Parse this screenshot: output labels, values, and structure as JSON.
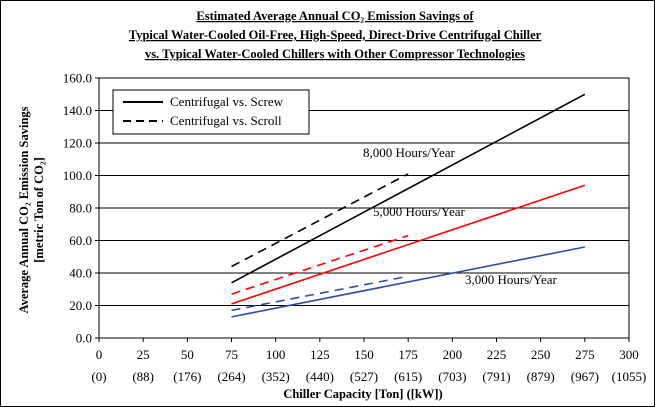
{
  "chart_data": {
    "type": "line",
    "title_lines": [
      "Estimated Average Annual CO₂ Emission Savings of",
      "Typical Water-Cooled Oil-Free, High-Speed, Direct-Drive Centrifugal Chiller",
      "vs. Typical Water-Cooled Chillers with Other Compressor Technologies"
    ],
    "xlabel": "Chiller Capacity [Ton] ([kW])",
    "ylabel_line1": "Average Annual CO₂ Emission Savings",
    "ylabel_line2": "[metric Ton of CO₂]",
    "xlim": [
      0,
      300
    ],
    "ylim": [
      0,
      160
    ],
    "x_ticks": [
      "0",
      "25",
      "50",
      "75",
      "100",
      "125",
      "150",
      "175",
      "200",
      "225",
      "250",
      "275",
      "300"
    ],
    "x_ticks_kw": [
      "(0)",
      "(88)",
      "(176)",
      "(264)",
      "(352)",
      "(440)",
      "(527)",
      "(615)",
      "(703)",
      "(791)",
      "(879)",
      "(967)",
      "(1055)"
    ],
    "y_ticks": [
      "0.0",
      "20.0",
      "40.0",
      "60.0",
      "80.0",
      "100.0",
      "120.0",
      "140.0",
      "160.0"
    ],
    "grid": "horizontal",
    "legend_position": "top-left",
    "legend": [
      {
        "label": "Centrifugal vs. Screw",
        "style": "solid"
      },
      {
        "label": "Centrifugal vs. Scroll",
        "style": "dashed"
      }
    ],
    "annotations": [
      "8,000 Hours/Year",
      "5,000 Hours/Year",
      "3,000 Hours/Year"
    ],
    "series": [
      {
        "group": "8,000 Hours/Year",
        "compare": "Screw",
        "color": "#000000",
        "dash": false,
        "x": [
          75,
          275
        ],
        "y": [
          34,
          150
        ]
      },
      {
        "group": "8,000 Hours/Year",
        "compare": "Scroll",
        "color": "#000000",
        "dash": true,
        "x": [
          75,
          175
        ],
        "y": [
          44,
          101
        ]
      },
      {
        "group": "5,000 Hours/Year",
        "compare": "Screw",
        "color": "#ff0000",
        "dash": false,
        "x": [
          75,
          275
        ],
        "y": [
          21,
          94
        ]
      },
      {
        "group": "5,000 Hours/Year",
        "compare": "Scroll",
        "color": "#ff0000",
        "dash": true,
        "x": [
          75,
          175
        ],
        "y": [
          27,
          63
        ]
      },
      {
        "group": "3,000 Hours/Year",
        "compare": "Screw",
        "color": "#2f4ea2",
        "dash": false,
        "x": [
          75,
          275
        ],
        "y": [
          13,
          56
        ]
      },
      {
        "group": "3,000 Hours/Year",
        "compare": "Scroll",
        "color": "#2f4ea2",
        "dash": true,
        "x": [
          75,
          175
        ],
        "y": [
          17,
          38
        ]
      }
    ]
  }
}
